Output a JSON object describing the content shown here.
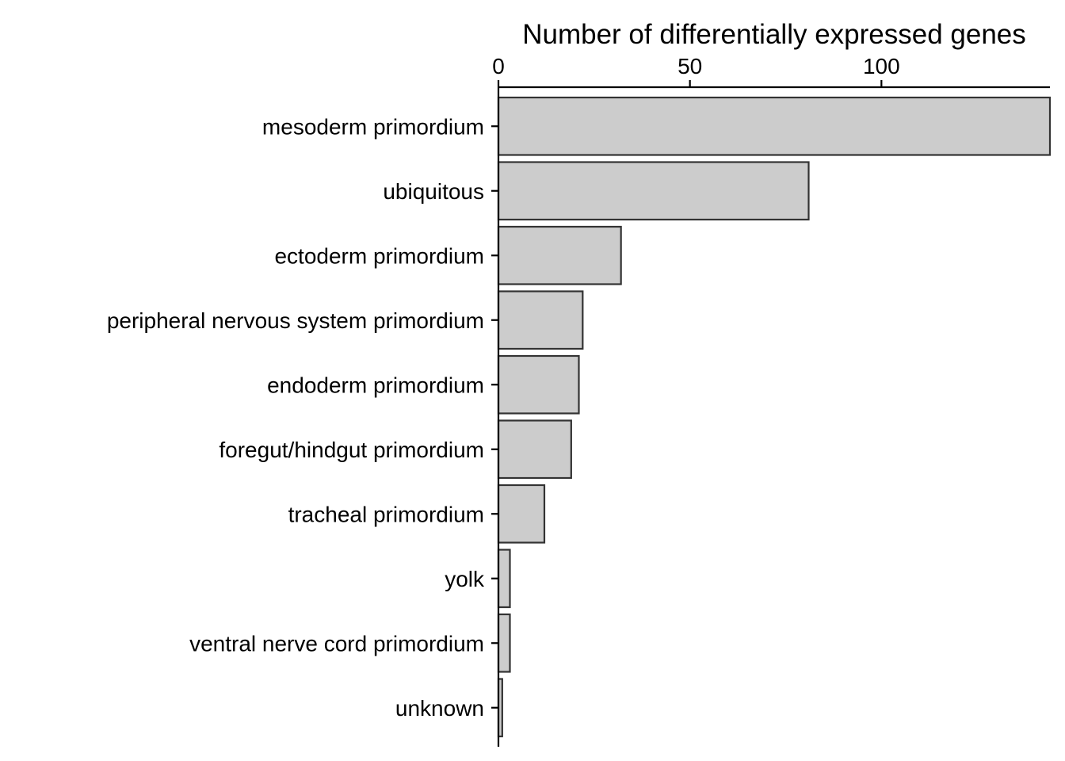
{
  "chart_data": {
    "type": "bar",
    "orientation": "horizontal",
    "title": "",
    "xlabel": "Number of differentially expressed genes",
    "xlabel_position": "top",
    "ylabel": "",
    "xlim": [
      0,
      144
    ],
    "xticks": [
      0,
      50,
      100
    ],
    "tick_labels": [
      "0",
      "50",
      "100"
    ],
    "categories": [
      "mesoderm primordium",
      "ubiquitous",
      "ectoderm primordium",
      "peripheral nervous system primordium",
      "endoderm primordium",
      "foregut/hindgut primordium",
      "tracheal primordium",
      "yolk",
      "ventral nerve cord primordium",
      "unknown"
    ],
    "values": [
      144,
      81,
      32,
      22,
      21,
      19,
      12,
      3,
      3,
      1
    ],
    "grid": false,
    "legend": "none",
    "bar_fill": "#cccccc",
    "bar_stroke": "#333333"
  }
}
